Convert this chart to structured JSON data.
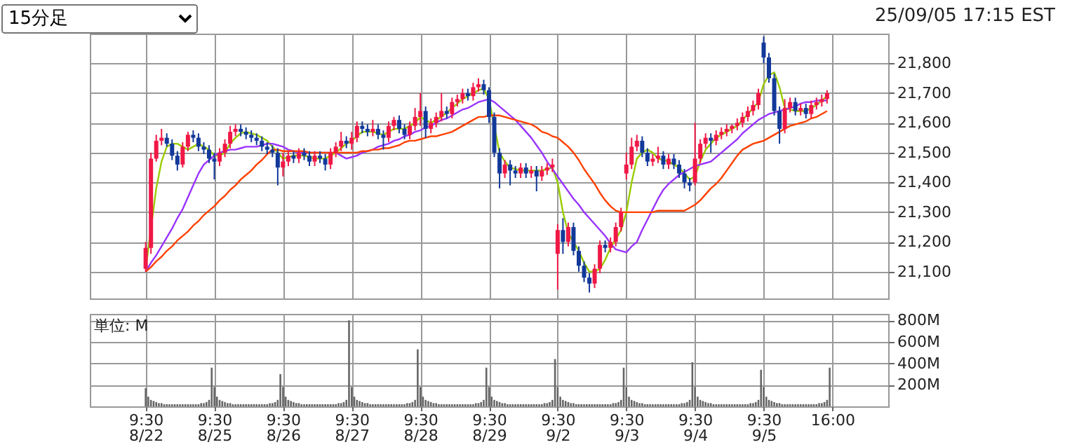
{
  "chart_data": [
    {
      "type": "candlestick",
      "annotations": [
        "15分足",
        "25/09/05 17:15 EST"
      ],
      "categories": [
        null,
        null,
        null,
        null,
        null,
        null,
        null,
        null,
        null,
        null,
        null,
        null,
        null,
        null,
        null,
        null,
        null,
        null,
        null,
        null,
        null,
        null,
        null,
        null,
        null,
        null,
        null,
        null,
        null,
        null,
        null,
        null,
        null,
        null,
        null,
        null,
        null,
        null,
        null,
        null,
        null,
        null,
        null,
        null,
        null,
        null,
        null,
        null,
        null,
        null,
        null,
        null,
        null,
        null,
        null,
        null,
        null,
        null,
        null,
        null,
        null,
        null,
        null,
        null,
        null,
        null,
        null,
        null,
        null,
        null,
        null,
        null,
        null,
        null,
        null,
        null,
        null,
        null,
        null,
        null,
        null,
        null,
        null,
        null,
        null,
        null,
        null,
        null,
        null,
        null,
        null,
        null,
        null,
        null,
        null,
        null,
        null,
        null,
        null,
        null,
        null,
        null,
        null,
        null,
        null,
        null,
        null,
        null,
        null,
        null,
        null,
        null,
        null,
        null,
        null,
        null,
        null,
        null,
        null,
        null,
        null,
        null,
        null,
        null,
        null,
        null,
        null,
        null,
        null,
        null,
        null
      ],
      "ohlc": [
        [
          21110,
          21200,
          21100,
          21180
        ],
        [
          21180,
          21500,
          21160,
          21480
        ],
        [
          21480,
          21560,
          21470,
          21540
        ],
        [
          21540,
          21580,
          21525,
          21550
        ],
        [
          21550,
          21565,
          21520,
          21530
        ],
        [
          21530,
          21545,
          21475,
          21490
        ],
        [
          21490,
          21505,
          21440,
          21460
        ],
        [
          21460,
          21535,
          21450,
          21520
        ],
        [
          21520,
          21570,
          21505,
          21560
        ],
        [
          21560,
          21575,
          21535,
          21550
        ],
        [
          21550,
          21565,
          21505,
          21520
        ],
        [
          21520,
          21535,
          21495,
          21510
        ],
        [
          21510,
          21525,
          21465,
          21480
        ],
        [
          21480,
          21500,
          21410,
          21470
        ],
        [
          21470,
          21515,
          21455,
          21500
        ],
        [
          21500,
          21545,
          21485,
          21530
        ],
        [
          21530,
          21590,
          21515,
          21570
        ],
        [
          21570,
          21595,
          21555,
          21580
        ],
        [
          21580,
          21595,
          21555,
          21570
        ],
        [
          21570,
          21585,
          21545,
          21560
        ],
        [
          21560,
          21575,
          21535,
          21550
        ],
        [
          21550,
          21565,
          21525,
          21540
        ],
        [
          21540,
          21555,
          21505,
          21520
        ],
        [
          21520,
          21535,
          21495,
          21510
        ],
        [
          21510,
          21525,
          21485,
          21500
        ],
        [
          21500,
          21515,
          21390,
          21450
        ],
        [
          21450,
          21500,
          21420,
          21470
        ],
        [
          21470,
          21505,
          21455,
          21490
        ],
        [
          21490,
          21505,
          21465,
          21480
        ],
        [
          21480,
          21515,
          21465,
          21500
        ],
        [
          21500,
          21515,
          21475,
          21490
        ],
        [
          21490,
          21505,
          21455,
          21470
        ],
        [
          21470,
          21505,
          21455,
          21490
        ],
        [
          21490,
          21505,
          21465,
          21480
        ],
        [
          21480,
          21495,
          21440,
          21460
        ],
        [
          21460,
          21515,
          21445,
          21500
        ],
        [
          21500,
          21535,
          21485,
          21520
        ],
        [
          21520,
          21570,
          21505,
          21540
        ],
        [
          21540,
          21555,
          21515,
          21530
        ],
        [
          21530,
          21570,
          21510,
          21550
        ],
        [
          21550,
          21605,
          21535,
          21590
        ],
        [
          21590,
          21605,
          21565,
          21580
        ],
        [
          21580,
          21595,
          21555,
          21570
        ],
        [
          21570,
          21610,
          21555,
          21580
        ],
        [
          21580,
          21595,
          21545,
          21560
        ],
        [
          21560,
          21575,
          21510,
          21550
        ],
        [
          21550,
          21605,
          21535,
          21590
        ],
        [
          21590,
          21620,
          21575,
          21610
        ],
        [
          21610,
          21625,
          21565,
          21580
        ],
        [
          21580,
          21595,
          21545,
          21560
        ],
        [
          21560,
          21605,
          21545,
          21590
        ],
        [
          21590,
          21650,
          21575,
          21620
        ],
        [
          21620,
          21700,
          21590,
          21640
        ],
        [
          21640,
          21655,
          21550,
          21580
        ],
        [
          21580,
          21615,
          21565,
          21600
        ],
        [
          21600,
          21635,
          21585,
          21620
        ],
        [
          21620,
          21700,
          21605,
          21640
        ],
        [
          21640,
          21655,
          21615,
          21630
        ],
        [
          21630,
          21685,
          21615,
          21670
        ],
        [
          21670,
          21695,
          21655,
          21680
        ],
        [
          21680,
          21715,
          21665,
          21700
        ],
        [
          21700,
          21715,
          21675,
          21690
        ],
        [
          21690,
          21735,
          21675,
          21720
        ],
        [
          21720,
          21750,
          21705,
          21730
        ],
        [
          21730,
          21745,
          21695,
          21710
        ],
        [
          21710,
          21720,
          21600,
          21620
        ],
        [
          21620,
          21635,
          21485,
          21500
        ],
        [
          21500,
          21515,
          21380,
          21430
        ],
        [
          21430,
          21475,
          21415,
          21460
        ],
        [
          21460,
          21475,
          21390,
          21440
        ],
        [
          21440,
          21455,
          21415,
          21430
        ],
        [
          21430,
          21465,
          21415,
          21450
        ],
        [
          21450,
          21465,
          21415,
          21430
        ],
        [
          21430,
          21455,
          21415,
          21440
        ],
        [
          21440,
          21455,
          21370,
          21420
        ],
        [
          21420,
          21455,
          21405,
          21440
        ],
        [
          21440,
          21465,
          21425,
          21450
        ],
        [
          21450,
          21480,
          21435,
          21460
        ],
        [
          21160,
          21260,
          21040,
          21240
        ],
        [
          21240,
          21280,
          21160,
          21200
        ],
        [
          21200,
          21265,
          21185,
          21250
        ],
        [
          21250,
          21265,
          21155,
          21170
        ],
        [
          21170,
          21185,
          21100,
          21120
        ],
        [
          21120,
          21135,
          21065,
          21080
        ],
        [
          21080,
          21095,
          21030,
          21060
        ],
        [
          21060,
          21125,
          21045,
          21110
        ],
        [
          21110,
          21205,
          21095,
          21190
        ],
        [
          21190,
          21205,
          21165,
          21180
        ],
        [
          21180,
          21215,
          21165,
          21200
        ],
        [
          21200,
          21265,
          21185,
          21250
        ],
        [
          21250,
          21315,
          21235,
          21300
        ],
        [
          21430,
          21500,
          21410,
          21460
        ],
        [
          21460,
          21550,
          21445,
          21520
        ],
        [
          21520,
          21560,
          21505,
          21540
        ],
        [
          21540,
          21555,
          21485,
          21500
        ],
        [
          21500,
          21515,
          21455,
          21470
        ],
        [
          21470,
          21495,
          21455,
          21480
        ],
        [
          21480,
          21520,
          21465,
          21490
        ],
        [
          21490,
          21505,
          21445,
          21460
        ],
        [
          21460,
          21495,
          21445,
          21480
        ],
        [
          21480,
          21495,
          21445,
          21460
        ],
        [
          21460,
          21475,
          21415,
          21430
        ],
        [
          21430,
          21445,
          21380,
          21400
        ],
        [
          21400,
          21415,
          21370,
          21390
        ],
        [
          21400,
          21600,
          21390,
          21480
        ],
        [
          21480,
          21545,
          21465,
          21530
        ],
        [
          21530,
          21565,
          21515,
          21550
        ],
        [
          21550,
          21565,
          21500,
          21540
        ],
        [
          21540,
          21575,
          21525,
          21560
        ],
        [
          21560,
          21585,
          21545,
          21570
        ],
        [
          21570,
          21595,
          21555,
          21580
        ],
        [
          21580,
          21595,
          21565,
          21590
        ],
        [
          21590,
          21615,
          21575,
          21600
        ],
        [
          21600,
          21635,
          21585,
          21620
        ],
        [
          21620,
          21655,
          21605,
          21640
        ],
        [
          21640,
          21675,
          21625,
          21660
        ],
        [
          21660,
          21715,
          21645,
          21700
        ],
        [
          21870,
          21890,
          21800,
          21820
        ],
        [
          21820,
          21835,
          21735,
          21750
        ],
        [
          21750,
          21765,
          21625,
          21640
        ],
        [
          21640,
          21655,
          21530,
          21580
        ],
        [
          21580,
          21680,
          21565,
          21650
        ],
        [
          21650,
          21685,
          21635,
          21670
        ],
        [
          21670,
          21685,
          21625,
          21640
        ],
        [
          21640,
          21665,
          21625,
          21650
        ],
        [
          21650,
          21665,
          21615,
          21630
        ],
        [
          21630,
          21675,
          21615,
          21660
        ],
        [
          21660,
          21685,
          21645,
          21670
        ],
        [
          21670,
          21695,
          21655,
          21680
        ],
        [
          21680,
          21710,
          21665,
          21700
        ],
        null
      ],
      "colors": [
        "#f01846",
        "#f01846",
        "#f01846",
        "#f01846",
        "#12399a",
        "#12399a",
        "#12399a",
        "#f01846",
        "#f01846",
        "#12399a",
        "#12399a",
        "#12399a",
        "#12399a",
        "#12399a",
        "#f01846",
        "#f01846",
        "#f01846",
        "#f01846",
        "#12399a",
        "#12399a",
        "#12399a",
        "#12399a",
        "#12399a",
        "#12399a",
        "#12399a",
        "#12399a",
        "#f01846",
        "#f01846",
        "#12399a",
        "#f01846",
        "#12399a",
        "#12399a",
        "#f01846",
        "#12399a",
        "#12399a",
        "#f01846",
        "#f01846",
        "#f01846",
        "#12399a",
        "#f01846",
        "#f01846",
        "#12399a",
        "#12399a",
        "#f01846",
        "#12399a",
        "#12399a",
        "#f01846",
        "#f01846",
        "#12399a",
        "#12399a",
        "#f01846",
        "#f01846",
        "#f01846",
        "#12399a",
        "#f01846",
        "#f01846",
        "#f01846",
        "#12399a",
        "#f01846",
        "#f01846",
        "#f01846",
        "#12399a",
        "#f01846",
        "#f01846",
        "#12399a",
        "#12399a",
        "#12399a",
        "#12399a",
        "#f01846",
        "#12399a",
        "#12399a",
        "#f01846",
        "#12399a",
        "#f01846",
        "#12399a",
        "#f01846",
        "#f01846",
        "#f01846",
        "#f01846",
        "#12399a",
        "#f01846",
        "#12399a",
        "#12399a",
        "#12399a",
        "#12399a",
        "#f01846",
        "#f01846",
        "#12399a",
        "#f01846",
        "#f01846",
        "#f01846",
        "#f01846",
        "#f01846",
        "#f01846",
        "#12399a",
        "#12399a",
        "#f01846",
        "#f01846",
        "#12399a",
        "#f01846",
        "#12399a",
        "#12399a",
        "#12399a",
        "#12399a",
        "#f01846",
        "#f01846",
        "#f01846",
        "#12399a",
        "#f01846",
        "#f01846",
        "#f01846",
        "#f01846",
        "#f01846",
        "#f01846",
        "#f01846",
        "#f01846",
        "#f01846",
        "#12399a",
        "#12399a",
        "#12399a",
        "#12399a",
        "#f01846",
        "#f01846",
        "#12399a",
        "#f01846",
        "#12399a",
        "#f01846",
        "#f01846",
        "#f01846",
        "#f01846",
        null
      ],
      "series": [
        {
          "type": "line",
          "color": "#99cc00",
          "values": [
            21110,
            null,
            21380,
            21470,
            21520,
            21530,
            21530,
            21520,
            21510,
            21520,
            21530,
            21520,
            21510,
            21490,
            21490,
            21500,
            21530,
            21550,
            21565,
            21570,
            21565,
            21560,
            21550,
            21540,
            21520,
            21500,
            21480,
            21485,
            21490,
            21490,
            21490,
            21485,
            21480,
            21480,
            21480,
            21490,
            21500,
            21515,
            21530,
            21540,
            21555,
            21570,
            21570,
            21570,
            21565,
            21560,
            21570,
            21580,
            21580,
            21580,
            21590,
            21600,
            21620,
            21610,
            21600,
            21610,
            21620,
            21635,
            21650,
            21665,
            21680,
            21690,
            21700,
            21710,
            21715,
            21680,
            null,
            21500,
            21470,
            21450,
            21445,
            21440,
            21440,
            21440,
            21440,
            21440,
            21445,
            21450,
            21400,
            21300,
            21230,
            21200,
            21170,
            21130,
            21100,
            21100,
            21110,
            21140,
            21180,
            21210,
            21240,
            21300,
            21400,
            21480,
            21500,
            21510,
            21500,
            21480,
            21475,
            21470,
            21460,
            21450,
            21430,
            21410,
            21420,
            21470,
            21510,
            21530,
            21550,
            21560,
            21570,
            21580,
            21590,
            21610,
            21630,
            21650,
            21670,
            21730,
            21760,
            21770,
            21720,
            21650,
            21645,
            21640,
            21640,
            21640,
            21650,
            21660,
            21675,
            21690,
            null
          ]
        },
        {
          "type": "line",
          "color": "#9933ff",
          "values": [
            21100,
            21130,
            21155,
            21185,
            21215,
            21245,
            21280,
            21310,
            21350,
            21390,
            21430,
            21460,
            21475,
            21490,
            21500,
            21505,
            21510,
            21510,
            21515,
            21520,
            21520,
            21520,
            21525,
            21530,
            21530,
            21525,
            21520,
            21510,
            21505,
            21500,
            21500,
            21500,
            21500,
            21500,
            21500,
            21500,
            21500,
            21490,
            21480,
            21485,
            21490,
            21500,
            21505,
            21510,
            21520,
            21525,
            21530,
            21540,
            21545,
            21555,
            21560,
            21570,
            21575,
            21585,
            21590,
            21600,
            21610,
            21615,
            21625,
            21635,
            21645,
            21650,
            21660,
            21670,
            21675,
            21680,
            21670,
            21655,
            21640,
            21625,
            21610,
            21590,
            21570,
            21550,
            21525,
            21500,
            21470,
            21445,
            21420,
            21395,
            21370,
            21345,
            21325,
            21300,
            21280,
            21260,
            21240,
            21220,
            21195,
            21175,
            21170,
            21165,
            21185,
            21200,
            21240,
            21275,
            21310,
            21345,
            21375,
            21395,
            21410,
            21425,
            21435,
            21445,
            21455,
            21460,
            21465,
            21470,
            21485,
            21500,
            21515,
            21530,
            21545,
            21565,
            21580,
            21595,
            21610,
            21620,
            21630,
            21635,
            21640,
            21645,
            21650,
            21655,
            21665,
            21670,
            21670,
            21675,
            21675,
            21675,
            null
          ]
        },
        {
          "type": "line",
          "color": "#ff4000",
          "values": [
            21100,
            21115,
            21135,
            21150,
            21170,
            21185,
            21205,
            21220,
            21235,
            21255,
            21270,
            21290,
            21305,
            21320,
            21340,
            21355,
            21375,
            21390,
            21410,
            21425,
            21440,
            21460,
            21475,
            21495,
            21510,
            21510,
            21505,
            21505,
            21505,
            21505,
            21505,
            21500,
            21500,
            21500,
            21500,
            21500,
            21500,
            21500,
            21500,
            21500,
            21500,
            21505,
            21505,
            21510,
            21510,
            21515,
            21515,
            21520,
            21525,
            21535,
            21540,
            21540,
            21545,
            21550,
            21555,
            21555,
            21560,
            21565,
            21570,
            21580,
            21590,
            21600,
            21610,
            21620,
            21620,
            21625,
            21625,
            21625,
            21620,
            21615,
            21610,
            21605,
            21600,
            21595,
            21585,
            21570,
            21565,
            21555,
            21550,
            21535,
            21520,
            21500,
            21475,
            21445,
            21420,
            21395,
            21365,
            21340,
            21320,
            21305,
            21300,
            21300,
            21300,
            21300,
            21300,
            21300,
            21300,
            21305,
            21305,
            21305,
            21305,
            21305,
            21305,
            21315,
            21325,
            21340,
            21360,
            21380,
            21395,
            21415,
            21440,
            21465,
            21490,
            21510,
            21520,
            21530,
            21535,
            21540,
            21550,
            21560,
            21570,
            21580,
            21590,
            21595,
            21600,
            21605,
            21615,
            21620,
            21630,
            21640,
            null
          ]
        }
      ],
      "ylim": [
        21010,
        21900
      ],
      "yticks": [
        {
          "value": 21100,
          "label": "21,100"
        },
        {
          "value": 21200,
          "label": "21,200"
        },
        {
          "value": 21300,
          "label": "21,300"
        },
        {
          "value": 21400,
          "label": "21,400"
        },
        {
          "value": 21500,
          "label": "21,500"
        },
        {
          "value": 21600,
          "label": "21,600"
        },
        {
          "value": 21700,
          "label": "21,700"
        },
        {
          "value": 21800,
          "label": "21,800"
        }
      ],
      "grid": true,
      "tick_labels": "y"
    },
    {
      "type": "bar",
      "annotations": [
        "単位: M"
      ],
      "color": "#666666",
      "categories": [
        "9:30\n8/22",
        null,
        null,
        null,
        null,
        null,
        null,
        null,
        null,
        null,
        null,
        null,
        null,
        null,
        null,
        null,
        null,
        null,
        null,
        null,
        null,
        null,
        null,
        null,
        null,
        null,
        "9:30\n8/25",
        null,
        null,
        null,
        null,
        null,
        null,
        null,
        null,
        null,
        null,
        null,
        null,
        null,
        null,
        null,
        null,
        null,
        null,
        null,
        null,
        null,
        null,
        null,
        null,
        null,
        "9:30\n8/26",
        null,
        null,
        null,
        null,
        null,
        null,
        null,
        null,
        null,
        null,
        null,
        null,
        null,
        null,
        null,
        null,
        null,
        null,
        null,
        null,
        null,
        null,
        null,
        null,
        null,
        "9:30\n8/27",
        null,
        null,
        null,
        null,
        null,
        null,
        null,
        null,
        null,
        null,
        null,
        null,
        null,
        null,
        null,
        null,
        null,
        null,
        null,
        null,
        null,
        null,
        null,
        null,
        null,
        "9:30\n8/28",
        null,
        null,
        null,
        null,
        null,
        null,
        null,
        null,
        null,
        null,
        null,
        null,
        null,
        null,
        null,
        null,
        null,
        null,
        null,
        null,
        null,
        null,
        null,
        null,
        null,
        "9:30\n8/29",
        null,
        null,
        null,
        null,
        null,
        null,
        null,
        null,
        null,
        null,
        null,
        null,
        null,
        null,
        null,
        null,
        null,
        null,
        null,
        null,
        null,
        null,
        null,
        null,
        null,
        "9:30\n9/2",
        null,
        null,
        null,
        null,
        null,
        null,
        null,
        null,
        null,
        null,
        null,
        null,
        null,
        null,
        null,
        null,
        null,
        null,
        null,
        null,
        null,
        null,
        null,
        null,
        null,
        "9:30\n9/3",
        null,
        null,
        null,
        null,
        null,
        null,
        null,
        null,
        null,
        null,
        null,
        null,
        null,
        null,
        null,
        null,
        null,
        null,
        null,
        null,
        null,
        null,
        null,
        null,
        null,
        "9:30\n9/4",
        null,
        null,
        null,
        null,
        null,
        null,
        null,
        null,
        null,
        null,
        null,
        null,
        null,
        null,
        null,
        null,
        null,
        null,
        null,
        null,
        null,
        null,
        null,
        null,
        null,
        "9:30\n9/5",
        null,
        null,
        null,
        null,
        null,
        null,
        null,
        null,
        null,
        null,
        null,
        null,
        null,
        null,
        null,
        null,
        null,
        null,
        null,
        null,
        null,
        null,
        null,
        null,
        null,
        "16:00"
      ],
      "values": [
        170,
        90,
        60,
        50,
        40,
        30,
        30,
        20,
        20,
        20,
        20,
        20,
        20,
        20,
        20,
        20,
        20,
        20,
        20,
        20,
        20,
        30,
        30,
        40,
        60,
        360,
        180,
        90,
        60,
        50,
        40,
        30,
        30,
        20,
        20,
        20,
        20,
        20,
        20,
        20,
        20,
        20,
        20,
        20,
        20,
        20,
        20,
        30,
        30,
        40,
        60,
        300,
        180,
        90,
        60,
        50,
        40,
        30,
        30,
        20,
        20,
        20,
        20,
        20,
        20,
        20,
        20,
        20,
        20,
        20,
        20,
        20,
        20,
        30,
        30,
        40,
        60,
        800,
        180,
        90,
        60,
        50,
        40,
        30,
        30,
        20,
        20,
        20,
        20,
        20,
        20,
        20,
        20,
        20,
        20,
        20,
        20,
        20,
        20,
        30,
        30,
        40,
        60,
        530,
        180,
        90,
        60,
        50,
        40,
        30,
        30,
        20,
        20,
        20,
        20,
        20,
        20,
        20,
        20,
        20,
        20,
        20,
        20,
        20,
        20,
        30,
        30,
        40,
        60,
        360,
        180,
        90,
        60,
        50,
        40,
        30,
        30,
        20,
        20,
        20,
        20,
        20,
        20,
        20,
        20,
        20,
        20,
        20,
        20,
        20,
        20,
        30,
        30,
        40,
        60,
        440,
        180,
        90,
        60,
        50,
        40,
        30,
        30,
        20,
        20,
        20,
        20,
        20,
        20,
        20,
        20,
        20,
        20,
        20,
        20,
        20,
        20,
        30,
        30,
        40,
        60,
        360,
        180,
        90,
        60,
        50,
        40,
        30,
        30,
        20,
        20,
        20,
        20,
        20,
        20,
        20,
        20,
        20,
        20,
        20,
        20,
        20,
        20,
        30,
        30,
        40,
        60,
        410,
        180,
        90,
        60,
        50,
        40,
        30,
        30,
        20,
        20,
        20,
        20,
        20,
        20,
        20,
        20,
        20,
        20,
        20,
        20,
        20,
        20,
        30,
        30,
        40,
        60,
        340,
        180,
        90,
        60,
        50,
        40,
        30,
        30,
        20,
        20,
        20,
        20,
        20,
        20,
        20,
        20,
        20,
        20,
        20,
        20,
        20,
        20,
        30,
        30,
        40,
        60,
        360,
        null
      ],
      "ylim": [
        0,
        860
      ],
      "yticks": [
        {
          "value": 200,
          "label": "200M"
        },
        {
          "value": 400,
          "label": "400M"
        },
        {
          "value": 600,
          "label": "600M"
        },
        {
          "value": 800,
          "label": "800M"
        }
      ],
      "grid": true
    }
  ]
}
